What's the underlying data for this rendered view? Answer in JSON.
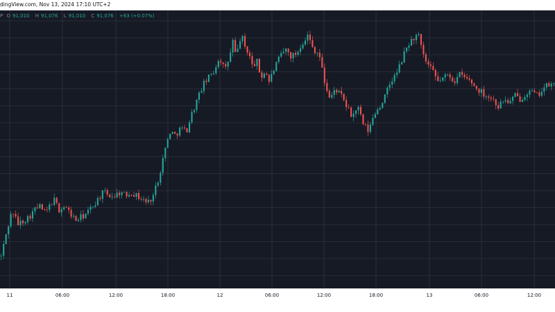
{
  "header": {
    "text": "dingView.com, Nov 13, 2024 17:10 UTC+2"
  },
  "ohlc": {
    "symbol": "P",
    "open_label": "O",
    "open": "91,010",
    "high_label": "H",
    "high": "91,076",
    "low_label": "L",
    "low": "91,010",
    "close_label": "C",
    "close": "91,076",
    "change": "+63 (+0.07%)"
  },
  "colors": {
    "background": "#161a25",
    "grid": "#3a3f4c",
    "up": "#26a69a",
    "down": "#ef5350",
    "axis_text": "#131722"
  },
  "chart_data": {
    "type": "candlestick",
    "title": "",
    "xlabel": "",
    "ylabel": "",
    "x_ticks": [
      "11",
      "06:00",
      "12:00",
      "18:00",
      "12",
      "06:00",
      "12:00",
      "18:00",
      "13",
      "06:00",
      "12:00"
    ],
    "grid": true,
    "y_axis_labels_visible": false,
    "price_path_normalized": [
      [
        0.0,
        0.13
      ],
      [
        0.01,
        0.2
      ],
      [
        0.02,
        0.26
      ],
      [
        0.03,
        0.22
      ],
      [
        0.04,
        0.23
      ],
      [
        0.05,
        0.24
      ],
      [
        0.06,
        0.26
      ],
      [
        0.07,
        0.27
      ],
      [
        0.08,
        0.25
      ],
      [
        0.095,
        0.29
      ],
      [
        0.105,
        0.26
      ],
      [
        0.115,
        0.27
      ],
      [
        0.125,
        0.25
      ],
      [
        0.135,
        0.23
      ],
      [
        0.145,
        0.24
      ],
      [
        0.155,
        0.25
      ],
      [
        0.165,
        0.27
      ],
      [
        0.175,
        0.29
      ],
      [
        0.185,
        0.31
      ],
      [
        0.195,
        0.3
      ],
      [
        0.205,
        0.3
      ],
      [
        0.215,
        0.31
      ],
      [
        0.225,
        0.3
      ],
      [
        0.235,
        0.31
      ],
      [
        0.245,
        0.3
      ],
      [
        0.255,
        0.29
      ],
      [
        0.265,
        0.28
      ],
      [
        0.275,
        0.3
      ],
      [
        0.285,
        0.35
      ],
      [
        0.295,
        0.42
      ],
      [
        0.305,
        0.48
      ],
      [
        0.315,
        0.47
      ],
      [
        0.325,
        0.49
      ],
      [
        0.335,
        0.48
      ],
      [
        0.345,
        0.53
      ],
      [
        0.355,
        0.57
      ],
      [
        0.365,
        0.61
      ],
      [
        0.375,
        0.63
      ],
      [
        0.385,
        0.65
      ],
      [
        0.395,
        0.69
      ],
      [
        0.405,
        0.65
      ],
      [
        0.415,
        0.7
      ],
      [
        0.42,
        0.74
      ],
      [
        0.425,
        0.68
      ],
      [
        0.43,
        0.73
      ],
      [
        0.435,
        0.75
      ],
      [
        0.44,
        0.72
      ],
      [
        0.448,
        0.7
      ],
      [
        0.455,
        0.66
      ],
      [
        0.462,
        0.68
      ],
      [
        0.47,
        0.63
      ],
      [
        0.478,
        0.65
      ],
      [
        0.485,
        0.62
      ],
      [
        0.495,
        0.66
      ],
      [
        0.505,
        0.69
      ],
      [
        0.515,
        0.71
      ],
      [
        0.525,
        0.69
      ],
      [
        0.535,
        0.7
      ],
      [
        0.545,
        0.73
      ],
      [
        0.555,
        0.75
      ],
      [
        0.565,
        0.71
      ],
      [
        0.575,
        0.7
      ],
      [
        0.585,
        0.62
      ],
      [
        0.595,
        0.57
      ],
      [
        0.605,
        0.6
      ],
      [
        0.615,
        0.58
      ],
      [
        0.625,
        0.55
      ],
      [
        0.635,
        0.52
      ],
      [
        0.645,
        0.55
      ],
      [
        0.655,
        0.5
      ],
      [
        0.665,
        0.48
      ],
      [
        0.675,
        0.53
      ],
      [
        0.685,
        0.55
      ],
      [
        0.695,
        0.58
      ],
      [
        0.705,
        0.62
      ],
      [
        0.715,
        0.64
      ],
      [
        0.725,
        0.68
      ],
      [
        0.735,
        0.72
      ],
      [
        0.745,
        0.74
      ],
      [
        0.755,
        0.75
      ],
      [
        0.762,
        0.7
      ],
      [
        0.77,
        0.67
      ],
      [
        0.78,
        0.65
      ],
      [
        0.79,
        0.62
      ],
      [
        0.8,
        0.63
      ],
      [
        0.81,
        0.64
      ],
      [
        0.82,
        0.62
      ],
      [
        0.83,
        0.64
      ],
      [
        0.84,
        0.63
      ],
      [
        0.85,
        0.62
      ],
      [
        0.86,
        0.6
      ],
      [
        0.87,
        0.59
      ],
      [
        0.88,
        0.58
      ],
      [
        0.89,
        0.57
      ],
      [
        0.9,
        0.55
      ],
      [
        0.91,
        0.57
      ],
      [
        0.92,
        0.56
      ],
      [
        0.93,
        0.58
      ],
      [
        0.94,
        0.57
      ],
      [
        0.95,
        0.59
      ],
      [
        0.96,
        0.59
      ],
      [
        0.97,
        0.58
      ],
      [
        0.98,
        0.6
      ],
      [
        0.99,
        0.61
      ],
      [
        1.0,
        0.61
      ]
    ]
  }
}
